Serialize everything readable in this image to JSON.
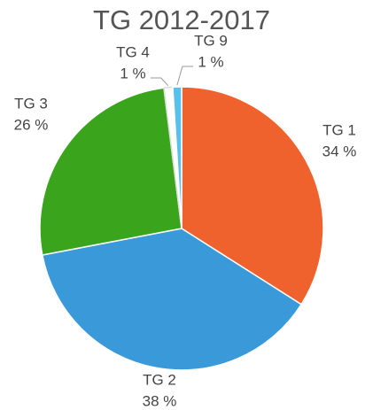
{
  "chart_data": {
    "type": "pie",
    "title": "TG 2012-2017",
    "categories": [
      "TG 1",
      "TG 2",
      "TG 3",
      "TG 4",
      "TG 9"
    ],
    "values": [
      34,
      38,
      26,
      1,
      1
    ],
    "value_labels": [
      "34 %",
      "38 %",
      "26 %",
      "1 %",
      "1 %"
    ],
    "colors": [
      "#f0622d",
      "#3a9ad9",
      "#3aa51c",
      "#ffffff",
      "#57c1eb"
    ]
  }
}
